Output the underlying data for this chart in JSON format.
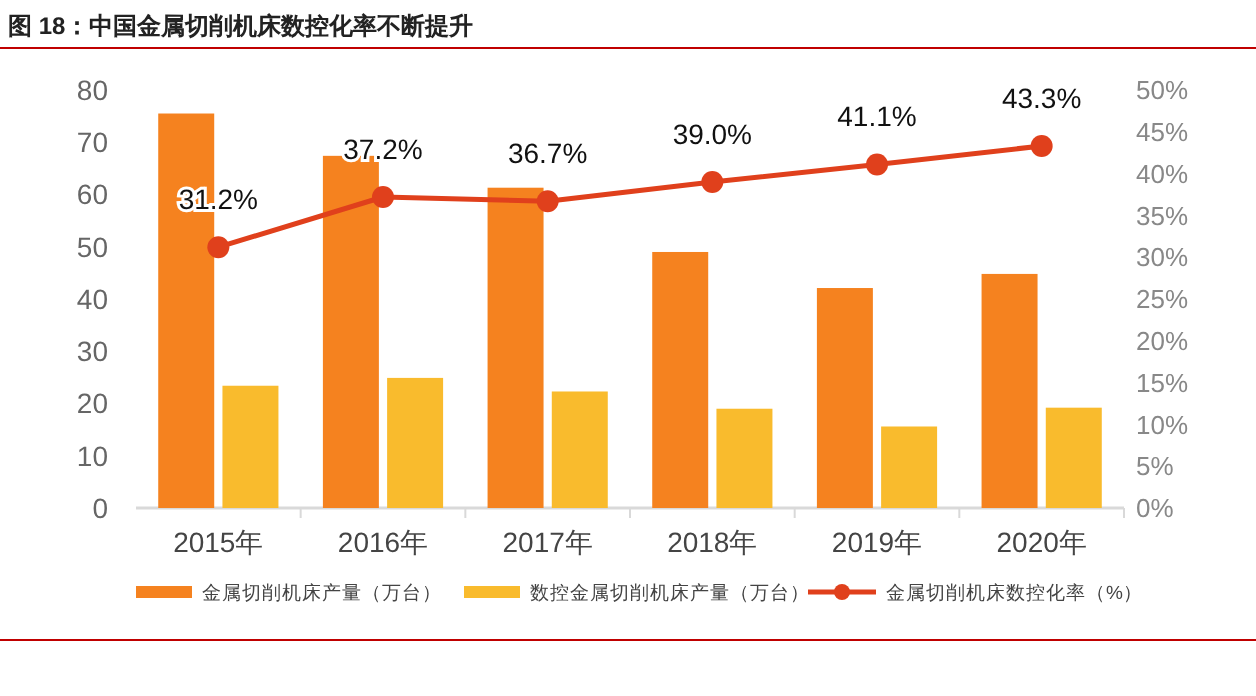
{
  "chart_data": {
    "type": "bar",
    "title": "图 18：中国金属切削机床数控化率不断提升",
    "categories": [
      "2015年",
      "2016年",
      "2017年",
      "2018年",
      "2019年",
      "2020年"
    ],
    "series": [
      {
        "name": "金属切削机床产量（万台）",
        "color": "#f5821f",
        "values": [
          75.5,
          67.4,
          61.3,
          49.0,
          42.1,
          44.8
        ]
      },
      {
        "name": "数控金属切削机床产量（万台）",
        "color": "#f9bb2d",
        "values": [
          23.4,
          24.9,
          22.3,
          19.0,
          15.6,
          19.2
        ]
      },
      {
        "name": "金属切削机床数控化率（%）",
        "color": "#e0401c",
        "type": "line",
        "axis": "y2",
        "marker": "circle",
        "values": [
          31.2,
          37.2,
          36.7,
          39.0,
          41.1,
          43.3
        ],
        "value_labels": [
          "31.2%",
          "37.2%",
          "36.7%",
          "39.0%",
          "41.1%",
          "43.3%"
        ]
      }
    ],
    "ylim": [
      0,
      80
    ],
    "yticks": [
      0,
      10,
      20,
      30,
      40,
      50,
      60,
      70,
      80
    ],
    "y2lim": [
      0,
      50
    ],
    "y2ticks": [
      {
        "value": 0,
        "label": "0%"
      },
      {
        "value": 5,
        "label": "5%"
      },
      {
        "value": 10,
        "label": "10%"
      },
      {
        "value": 15,
        "label": "15%"
      },
      {
        "value": 20,
        "label": "20%"
      },
      {
        "value": 25,
        "label": "25%"
      },
      {
        "value": 30,
        "label": "30%"
      },
      {
        "value": 35,
        "label": "35%"
      },
      {
        "value": 40,
        "label": "40%"
      },
      {
        "value": 45,
        "label": "45%"
      },
      {
        "value": 50,
        "label": "50%"
      }
    ],
    "grid": false,
    "legend": "bottom"
  }
}
